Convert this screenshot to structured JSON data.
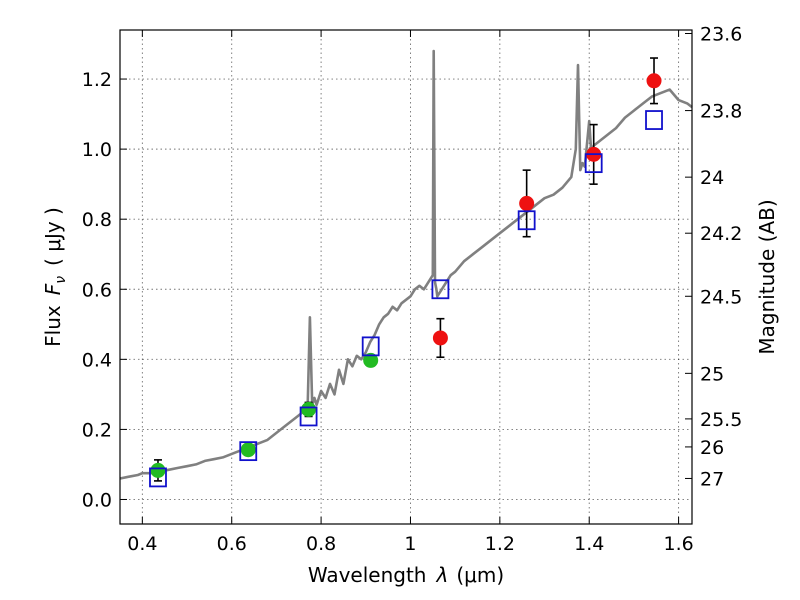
{
  "chart_data": {
    "type": "scatter",
    "xlabel_prefix": "Wavelength",
    "xlabel_var": "λ",
    "xlabel_unit": "(μm)",
    "ylabel_prefix": "Flux",
    "ylabel_var": "F",
    "ylabel_sub": "ν",
    "ylabel_unit": "( μJy )",
    "y2label": "Magnitude (AB)",
    "xlim": [
      0.35,
      1.63
    ],
    "ylim": [
      -0.07,
      1.34
    ],
    "xticks": [
      0.4,
      0.6,
      0.8,
      1.0,
      1.2,
      1.4,
      1.6
    ],
    "xtick_labels": [
      "0.4",
      "0.6",
      "0.8",
      "1",
      "1.2",
      "1.4",
      "1.6"
    ],
    "yticks": [
      0.0,
      0.2,
      0.4,
      0.6,
      0.8,
      1.0,
      1.2
    ],
    "ytick_labels": [
      "0.0",
      "0.2",
      "0.4",
      "0.6",
      "0.8",
      "1.0",
      "1.2"
    ],
    "mag_ticks": [
      {
        "label": "23.6",
        "flux": 1.33
      },
      {
        "label": "23.8",
        "flux": 1.11
      },
      {
        "label": "24",
        "flux": 0.92
      },
      {
        "label": "24.2",
        "flux": 0.76
      },
      {
        "label": "24.5",
        "flux": 0.58
      },
      {
        "label": "25",
        "flux": 0.36
      },
      {
        "label": "25.5",
        "flux": 0.23
      },
      {
        "label": "26",
        "flux": 0.15
      },
      {
        "label": "27",
        "flux": 0.06
      }
    ],
    "grid": true,
    "colors": {
      "spectrum": "#808080",
      "green_points": "#22bb22",
      "red_points": "#ee1111",
      "model_boxes": "#1111cc",
      "errorbars": "#000000"
    },
    "spectrum": {
      "name": "",
      "x": [
        0.35,
        0.37,
        0.39,
        0.4,
        0.42,
        0.44,
        0.46,
        0.48,
        0.5,
        0.52,
        0.54,
        0.56,
        0.58,
        0.6,
        0.62,
        0.64,
        0.66,
        0.68,
        0.7,
        0.72,
        0.74,
        0.76,
        0.77,
        0.775,
        0.78,
        0.785,
        0.79,
        0.8,
        0.81,
        0.82,
        0.83,
        0.84,
        0.85,
        0.86,
        0.87,
        0.88,
        0.89,
        0.9,
        0.91,
        0.92,
        0.93,
        0.94,
        0.95,
        0.96,
        0.97,
        0.98,
        0.99,
        1.0,
        1.01,
        1.02,
        1.03,
        1.04,
        1.05,
        1.052,
        1.055,
        1.058,
        1.06,
        1.07,
        1.08,
        1.09,
        1.1,
        1.12,
        1.14,
        1.16,
        1.18,
        1.2,
        1.22,
        1.24,
        1.26,
        1.28,
        1.3,
        1.32,
        1.34,
        1.36,
        1.37,
        1.375,
        1.38,
        1.385,
        1.39,
        1.4,
        1.405,
        1.41,
        1.42,
        1.44,
        1.46,
        1.48,
        1.5,
        1.52,
        1.54,
        1.56,
        1.58,
        1.6,
        1.62,
        1.63
      ],
      "y": [
        0.06,
        0.065,
        0.07,
        0.075,
        0.075,
        0.08,
        0.085,
        0.09,
        0.095,
        0.1,
        0.11,
        0.115,
        0.12,
        0.13,
        0.14,
        0.15,
        0.16,
        0.17,
        0.19,
        0.21,
        0.23,
        0.25,
        0.27,
        0.52,
        0.27,
        0.29,
        0.27,
        0.31,
        0.29,
        0.33,
        0.3,
        0.37,
        0.33,
        0.4,
        0.38,
        0.41,
        0.4,
        0.42,
        0.45,
        0.47,
        0.5,
        0.52,
        0.53,
        0.55,
        0.54,
        0.56,
        0.57,
        0.58,
        0.6,
        0.61,
        0.6,
        0.62,
        0.64,
        1.28,
        0.62,
        0.6,
        0.58,
        0.6,
        0.62,
        0.64,
        0.65,
        0.68,
        0.7,
        0.72,
        0.74,
        0.76,
        0.78,
        0.8,
        0.82,
        0.84,
        0.86,
        0.87,
        0.89,
        0.92,
        1.0,
        1.24,
        0.94,
        0.96,
        0.95,
        1.08,
        0.98,
        1.01,
        1.02,
        1.04,
        1.06,
        1.09,
        1.11,
        1.13,
        1.15,
        1.16,
        1.17,
        1.14,
        1.13,
        1.12
      ]
    },
    "green_points": [
      {
        "x": 0.435,
        "y": 0.083,
        "err": 0.03
      },
      {
        "x": 0.637,
        "y": 0.142,
        "err": 0.012
      },
      {
        "x": 0.772,
        "y": 0.257,
        "err": 0.02
      },
      {
        "x": 0.911,
        "y": 0.397,
        "err": 0.015
      }
    ],
    "red_points": [
      {
        "x": 1.067,
        "y": 0.461,
        "err": 0.055
      },
      {
        "x": 1.26,
        "y": 0.845,
        "err": 0.095
      },
      {
        "x": 1.41,
        "y": 0.985,
        "err": 0.085
      },
      {
        "x": 1.545,
        "y": 1.195,
        "err": 0.065
      }
    ],
    "model_boxes": [
      {
        "x": 0.435,
        "y": 0.063
      },
      {
        "x": 0.637,
        "y": 0.138
      },
      {
        "x": 0.772,
        "y": 0.237
      },
      {
        "x": 0.911,
        "y": 0.437
      },
      {
        "x": 1.067,
        "y": 0.6
      },
      {
        "x": 1.26,
        "y": 0.797
      },
      {
        "x": 1.41,
        "y": 0.96
      },
      {
        "x": 1.545,
        "y": 1.083
      }
    ]
  }
}
